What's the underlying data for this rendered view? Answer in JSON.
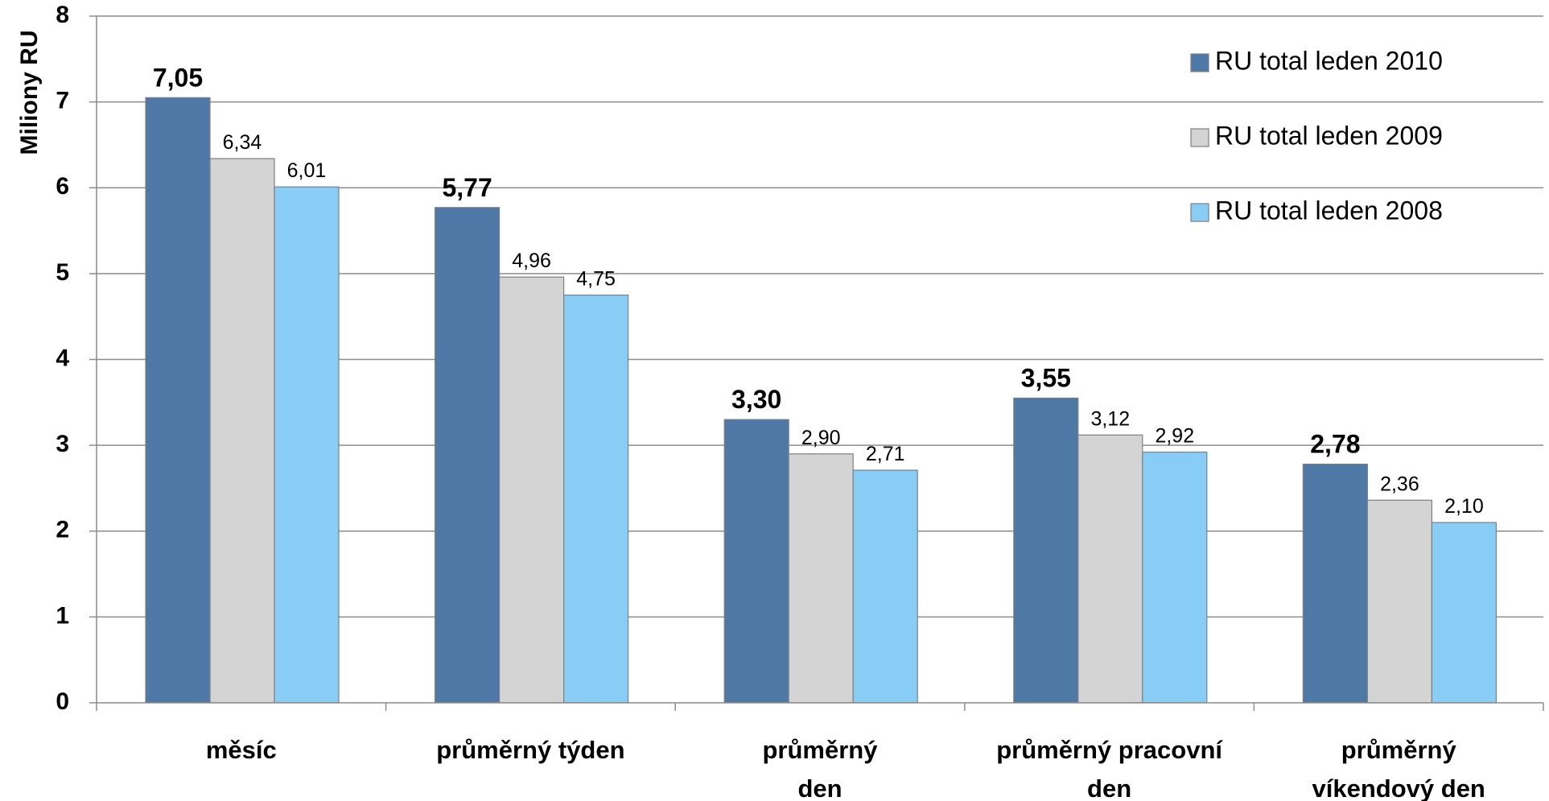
{
  "chart_data": {
    "type": "bar",
    "title": "",
    "xlabel": "",
    "ylabel": "Miliony RU",
    "ylim": [
      0,
      8
    ],
    "yticks": [
      "0",
      "1",
      "2",
      "3",
      "4",
      "5",
      "6",
      "7",
      "8"
    ],
    "grid": true,
    "legend_position": "top-right",
    "categories": [
      [
        "měsíc"
      ],
      [
        "průměrný týden"
      ],
      [
        "průměrný",
        "den"
      ],
      [
        "průměrný pracovní",
        "den"
      ],
      [
        "průměrný",
        "víkendový den"
      ]
    ],
    "series": [
      {
        "name": "RU total leden 2010",
        "color": "#4e78a6",
        "values": [
          7.05,
          5.77,
          3.3,
          3.55,
          2.78
        ],
        "labels": [
          "7,05",
          "5,77",
          "3,30",
          "3,55",
          "2,78"
        ],
        "label_bold": true
      },
      {
        "name": "RU total leden 2009",
        "color": "#d4d4d4",
        "values": [
          6.34,
          4.96,
          2.9,
          3.12,
          2.36
        ],
        "labels": [
          "6,34",
          "4,96",
          "2,90",
          "3,12",
          "2,36"
        ],
        "label_bold": false
      },
      {
        "name": "RU total leden 2008",
        "color": "#87cdf6",
        "values": [
          6.01,
          4.75,
          2.71,
          2.92,
          2.1
        ],
        "labels": [
          "6,01",
          "4,75",
          "2,71",
          "2,92",
          "2,10"
        ],
        "label_bold": false
      }
    ]
  }
}
